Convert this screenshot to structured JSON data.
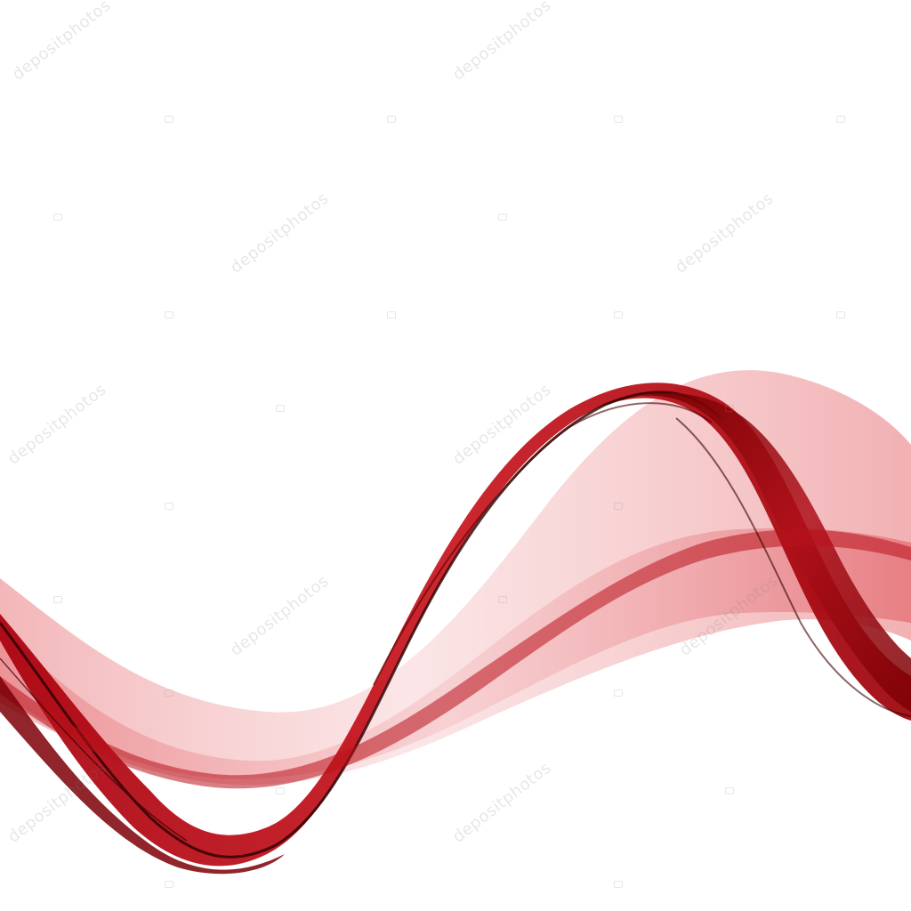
{
  "artwork": {
    "description_name": "red-abstract-wave",
    "colors": {
      "background": "#ffffff",
      "deep_red": "#8e0000",
      "crimson": "#c4101a",
      "dark_edge": "#2a0000",
      "light_pink": "#f2a7a9",
      "soft_pink": "#f7c9cb"
    }
  },
  "watermark": {
    "text": "depositphotos"
  }
}
